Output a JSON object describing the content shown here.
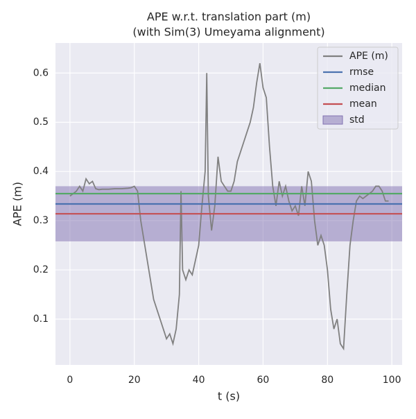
{
  "chart_data": {
    "type": "line",
    "title": "APE w.r.t. translation part (m)",
    "subtitle": "(with Sim(3) Umeyama alignment)",
    "x_label": "t (s)",
    "y_label": "APE (m)",
    "xlim": [
      -4.5,
      103.2
    ],
    "ylim": [
      0.007,
      0.661
    ],
    "xticks": [
      0,
      20,
      40,
      60,
      80,
      100
    ],
    "yticks": [
      0.1,
      0.2,
      0.3,
      0.4,
      0.5,
      0.6
    ],
    "grid": true,
    "legend": "upper right",
    "series": [
      {
        "name": "APE (m)",
        "color": "#808080",
        "x": [
          0,
          1,
          2,
          3,
          4,
          5,
          6,
          7,
          8,
          9,
          10,
          12,
          14,
          16,
          18,
          19,
          20,
          21,
          22,
          23,
          24,
          25,
          26,
          27,
          28,
          29,
          30,
          31,
          32,
          33,
          34,
          34.5,
          35,
          36,
          37,
          38,
          39,
          40,
          41,
          42,
          42.5,
          43,
          44,
          45,
          46,
          47,
          48,
          49,
          50,
          51,
          52,
          53,
          54,
          55,
          56,
          57,
          58,
          59,
          60,
          61,
          62,
          63,
          64,
          65,
          66,
          67,
          68,
          69,
          70,
          71,
          72,
          73,
          74,
          75,
          76,
          77,
          78,
          79,
          80,
          81,
          82,
          83,
          84,
          85,
          86,
          87,
          88,
          89,
          90,
          91,
          92,
          93,
          94,
          95,
          96,
          97,
          98,
          99
        ],
        "values": [
          0.35,
          0.355,
          0.36,
          0.37,
          0.36,
          0.385,
          0.375,
          0.38,
          0.365,
          0.363,
          0.364,
          0.364,
          0.365,
          0.365,
          0.366,
          0.367,
          0.37,
          0.36,
          0.3,
          0.26,
          0.22,
          0.18,
          0.14,
          0.12,
          0.1,
          0.08,
          0.06,
          0.07,
          0.05,
          0.08,
          0.15,
          0.36,
          0.2,
          0.18,
          0.2,
          0.19,
          0.22,
          0.25,
          0.33,
          0.4,
          0.6,
          0.35,
          0.28,
          0.33,
          0.43,
          0.38,
          0.37,
          0.36,
          0.36,
          0.38,
          0.42,
          0.44,
          0.46,
          0.48,
          0.5,
          0.53,
          0.58,
          0.62,
          0.57,
          0.55,
          0.45,
          0.37,
          0.33,
          0.38,
          0.35,
          0.37,
          0.34,
          0.32,
          0.33,
          0.31,
          0.37,
          0.33,
          0.4,
          0.38,
          0.3,
          0.25,
          0.27,
          0.25,
          0.2,
          0.12,
          0.08,
          0.1,
          0.05,
          0.04,
          0.15,
          0.25,
          0.3,
          0.34,
          0.35,
          0.345,
          0.35,
          0.355,
          0.36,
          0.37,
          0.37,
          0.36,
          0.34,
          0.34
        ]
      }
    ],
    "stats": [
      {
        "name": "rmse",
        "color": "#4c72b0",
        "value": 0.334
      },
      {
        "name": "median",
        "color": "#55a868",
        "value": 0.355
      },
      {
        "name": "mean",
        "color": "#c44e52",
        "value": 0.314
      }
    ],
    "std": {
      "name": "std",
      "color": "#8172b2",
      "value": 0.056
    }
  }
}
